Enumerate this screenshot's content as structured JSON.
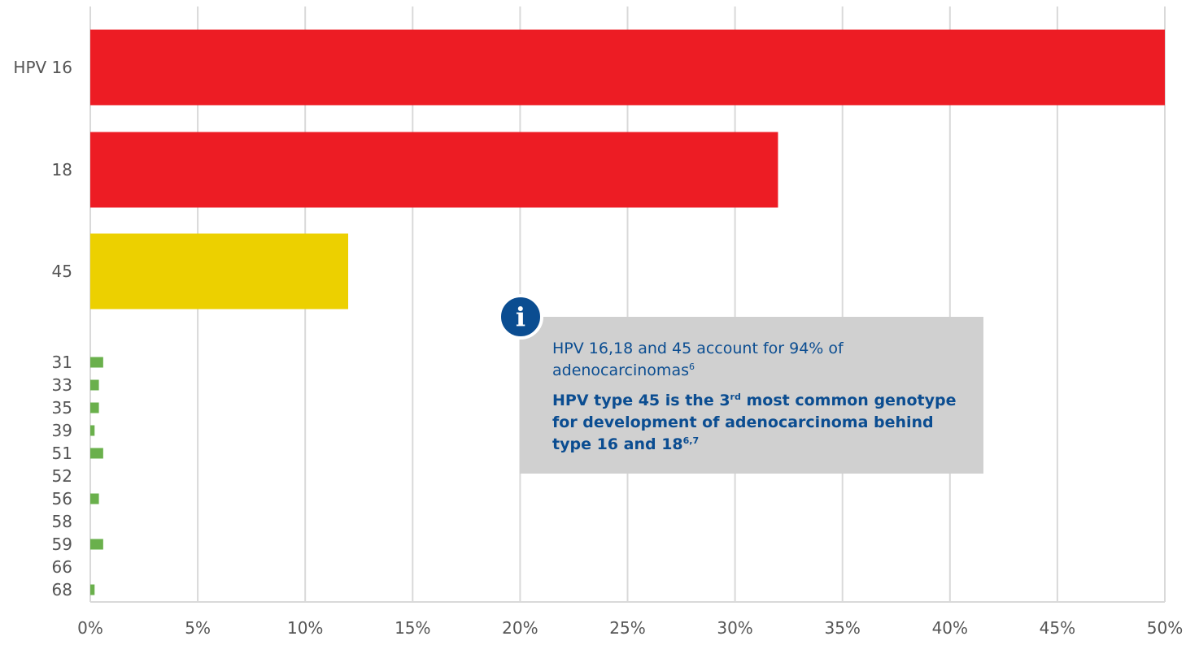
{
  "chart_data": {
    "type": "bar",
    "orientation": "horizontal",
    "categories": [
      "HPV 16",
      "18",
      "45",
      "31",
      "33",
      "35",
      "39",
      "51",
      "52",
      "56",
      "58",
      "59",
      "66",
      "68"
    ],
    "values": [
      50,
      32,
      12,
      0.6,
      0.4,
      0.4,
      0.2,
      0.6,
      0,
      0.4,
      0,
      0.6,
      0,
      0.2
    ],
    "bar_colors": [
      "#ed1c24",
      "#ed1c24",
      "#ecd000",
      "#6ab04c",
      "#6ab04c",
      "#6ab04c",
      "#6ab04c",
      "#6ab04c",
      "#6ab04c",
      "#6ab04c",
      "#6ab04c",
      "#6ab04c",
      "#6ab04c",
      "#6ab04c"
    ],
    "xlim": [
      0,
      50
    ],
    "x_ticks": [
      "0%",
      "5%",
      "10%",
      "15%",
      "20%",
      "25%",
      "30%",
      "35%",
      "40%",
      "45%",
      "50%"
    ],
    "grid": true,
    "title": "",
    "xlabel": "",
    "ylabel": ""
  },
  "callout": {
    "icon": "info-icon",
    "icon_glyph": "i",
    "line1_text": "HPV 16,18 and 45 account for 94% of adenocarcinomas",
    "line1_sup": "6",
    "line2_pre": "HPV type 45 is the 3",
    "line2_sup1": "rd",
    "line2_post": " most common genotype for development of adenocarcinoma behind type 16 and 18",
    "line2_sup2": "6,7"
  }
}
